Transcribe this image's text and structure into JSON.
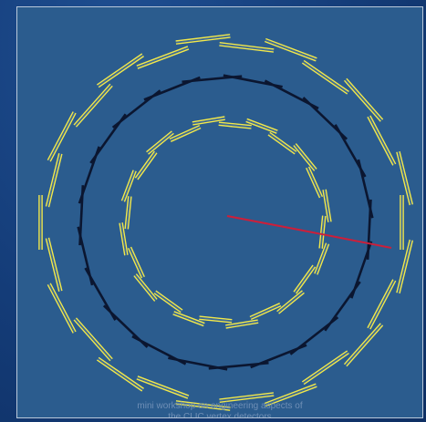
{
  "footer": {
    "caption": "mini workshop on engineering aspects of\nthe CLIC vertex detectors"
  },
  "colors": {
    "background": "#2b5c8e",
    "module_yellow": "#f2e84a",
    "module_dark": "#0b1630",
    "track_red": "#cc1f3a"
  },
  "rings": [
    {
      "name": "inner-yellow-ring",
      "color": "yellow",
      "count": 24
    },
    {
      "name": "middle-dark-ring",
      "color": "dark",
      "count": 22
    },
    {
      "name": "outer-yellow-ring",
      "color": "yellow",
      "count": 26
    }
  ]
}
